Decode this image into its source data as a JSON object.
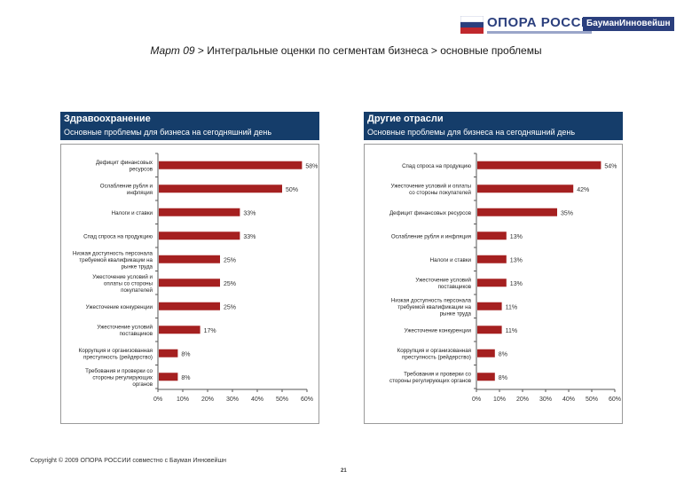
{
  "brand": {
    "name": "ОПОРА РОССИИ",
    "partner": "БауманИнновейшн",
    "flag_colors": [
      "#ffffff",
      "#2b3f7d",
      "#c0282d"
    ]
  },
  "title": {
    "prefix": "Март 09",
    "rest": " > Интегральные оценки по сегментам бизнеса > основные проблемы"
  },
  "footer": {
    "copyright": "Copyright © 2009 ОПОРА РОССИИ совместно с Бауман Инновейшн",
    "page": "21"
  },
  "colors": {
    "bar": "#a52020",
    "header": "#153d6a"
  },
  "chart_data": [
    {
      "type": "bar",
      "orientation": "horizontal",
      "title": "Здравоохранение",
      "subtitle": "Основные проблемы для бизнеса на сегодняшний день",
      "xlim": [
        0,
        60
      ],
      "xticks": [
        0,
        10,
        20,
        30,
        40,
        50,
        60
      ],
      "xtick_labels": [
        "0%",
        "10%",
        "20%",
        "30%",
        "40%",
        "50%",
        "60%"
      ],
      "categories": [
        [
          "Дефицит финансовых",
          "ресурсов"
        ],
        [
          "Ослабление рубля и",
          "инфляция"
        ],
        [
          "Налоги и ставки"
        ],
        [
          "Спад спроса на продукцию"
        ],
        [
          "Низкая доступность персонала",
          "требуемой квалификации на",
          "рынке труда"
        ],
        [
          "Ужесточение условий и",
          "оплаты со стороны",
          "покупателей"
        ],
        [
          "Ужесточение конкуренции"
        ],
        [
          "Ужесточение условий",
          "поставщиков"
        ],
        [
          "Коррупция и организованная",
          "преступность (рейдерство)"
        ],
        [
          "Требования и проверки со",
          "стороны регулирующих",
          "органов"
        ]
      ],
      "values": [
        58,
        50,
        33,
        33,
        25,
        25,
        25,
        17,
        8,
        8
      ],
      "value_labels": [
        "58%",
        "50%",
        "33%",
        "33%",
        "25%",
        "25%",
        "25%",
        "17%",
        "8%",
        "8%"
      ]
    },
    {
      "type": "bar",
      "orientation": "horizontal",
      "title": "Другие отрасли",
      "subtitle": "Основные проблемы для бизнеса на сегодняшний день",
      "xlim": [
        0,
        60
      ],
      "xticks": [
        0,
        10,
        20,
        30,
        40,
        50,
        60
      ],
      "xtick_labels": [
        "0%",
        "10%",
        "20%",
        "30%",
        "40%",
        "50%",
        "60%"
      ],
      "categories": [
        [
          "Спад спроса на продукцию"
        ],
        [
          "Ужесточение условий и оплаты",
          "со стороны покупателей"
        ],
        [
          "Дефицит финансовых ресурсов"
        ],
        [
          "Ослабление рубля и инфляция"
        ],
        [
          "Налоги и ставки"
        ],
        [
          "Ужесточение условий",
          "поставщиков"
        ],
        [
          "Низкая доступность персонала",
          "требуемой квалификации на",
          "рынке труда"
        ],
        [
          "Ужесточение конкуренции"
        ],
        [
          "Коррупция и организованная",
          "преступность (рейдерство)"
        ],
        [
          "Требования и проверки со",
          "стороны регулирующих органов"
        ]
      ],
      "values": [
        54,
        42,
        35,
        13,
        13,
        13,
        11,
        11,
        8,
        8
      ],
      "value_labels": [
        "54%",
        "42%",
        "35%",
        "13%",
        "13%",
        "13%",
        "11%",
        "11%",
        "8%",
        "8%"
      ]
    }
  ]
}
